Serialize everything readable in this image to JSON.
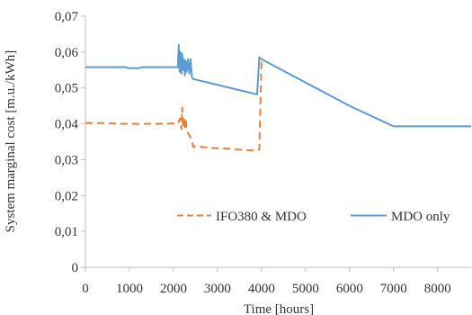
{
  "chart_data": {
    "type": "line",
    "xlabel": "Time  [hours]",
    "ylabel": "System  marginal  cost  [m.u./kWh]",
    "xlim": [
      0,
      8760
    ],
    "ylim": [
      0,
      0.07
    ],
    "x_ticks": [
      0,
      1000,
      2000,
      3000,
      4000,
      5000,
      6000,
      7000,
      8000
    ],
    "x_tick_labels": [
      "0",
      "1000",
      "2000",
      "3000",
      "4000",
      "5000",
      "6000",
      "7000",
      "8000"
    ],
    "y_ticks": [
      0,
      0.01,
      0.02,
      0.03,
      0.04,
      0.05,
      0.06,
      0.07
    ],
    "y_tick_labels": [
      "0",
      "0,01",
      "0,02",
      "0,03",
      "0,04",
      "0,05",
      "0,06",
      "0,07"
    ],
    "grid": false,
    "legend_position": "bottom-right",
    "series": [
      {
        "name": "IFO380 & MDO",
        "color": "#ED7D31",
        "style": "dashed",
        "x": [
          0,
          400,
          800,
          1200,
          1600,
          2000,
          2100,
          2150,
          2180,
          2200,
          2220,
          2240,
          2260,
          2280,
          2300,
          2350,
          2400,
          2450,
          2500,
          2800,
          3200,
          3600,
          3900,
          3950,
          4000
        ],
        "y": [
          0.0402,
          0.0402,
          0.04,
          0.04,
          0.04,
          0.0401,
          0.04,
          0.0415,
          0.0385,
          0.0445,
          0.039,
          0.042,
          0.0385,
          0.0415,
          0.038,
          0.037,
          0.036,
          0.0335,
          0.0338,
          0.0333,
          0.0331,
          0.0327,
          0.0325,
          0.0328,
          0.0575
        ]
      },
      {
        "name": "MDO only",
        "color": "#5B9BD5",
        "style": "solid",
        "x": [
          0,
          900,
          1000,
          1200,
          1300,
          2000,
          2100,
          2120,
          2140,
          2160,
          2180,
          2200,
          2220,
          2240,
          2260,
          2280,
          2300,
          2330,
          2360,
          2390,
          2420,
          2450,
          3900,
          3950,
          4000,
          5000,
          6000,
          7000,
          8760
        ],
        "y": [
          0.0558,
          0.0558,
          0.0555,
          0.0555,
          0.0558,
          0.0558,
          0.0558,
          0.062,
          0.0545,
          0.06,
          0.054,
          0.0595,
          0.055,
          0.058,
          0.0535,
          0.0575,
          0.0545,
          0.058,
          0.054,
          0.058,
          0.053,
          0.0525,
          0.0482,
          0.0585,
          0.058,
          0.0515,
          0.045,
          0.0393,
          0.0393
        ]
      }
    ]
  }
}
